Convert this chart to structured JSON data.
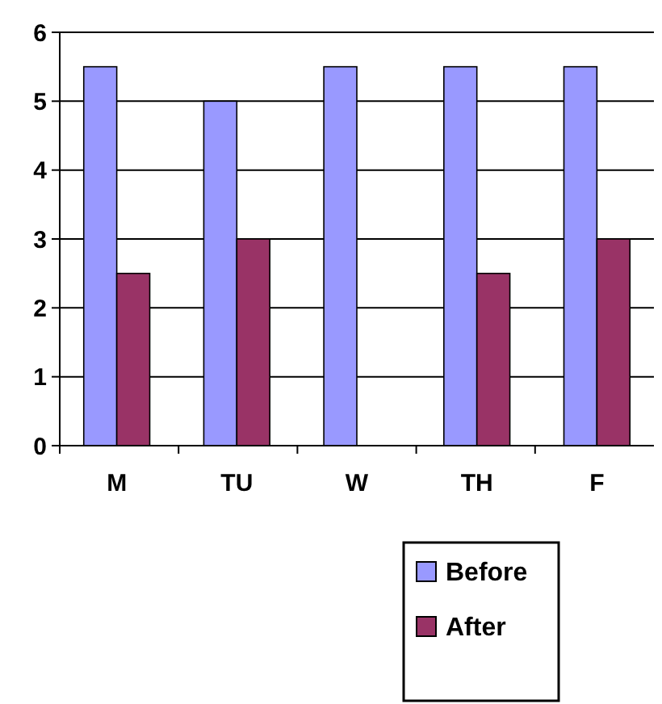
{
  "chart_data": {
    "type": "bar",
    "categories": [
      "M",
      "TU",
      "W",
      "TH",
      "F"
    ],
    "series": [
      {
        "name": "Before",
        "color": "#9999ff",
        "values": [
          5.5,
          5,
          5.5,
          5.5,
          5.5
        ]
      },
      {
        "name": "After",
        "color": "#993366",
        "values": [
          2.5,
          3,
          0,
          2.5,
          3
        ]
      }
    ],
    "ylim": [
      0,
      6
    ],
    "yticks": [
      0,
      1,
      2,
      3,
      4,
      5,
      6
    ],
    "grid": "y",
    "legend": "bottom"
  }
}
